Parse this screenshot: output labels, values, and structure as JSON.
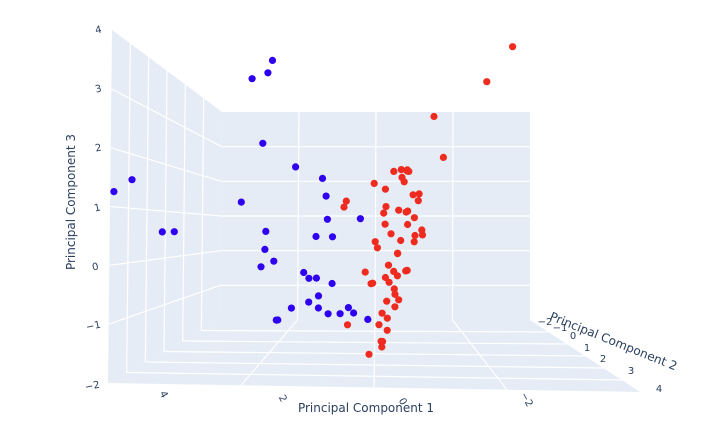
{
  "chart_data": {
    "type": "scatter",
    "title": "",
    "axes": {
      "x": {
        "label": "Principal Component 1",
        "ticks": [
          "4",
          "2",
          "0",
          "−2"
        ]
      },
      "y": {
        "label": "Principal Component 2",
        "ticks": [
          "−2",
          "−1",
          "0",
          "1",
          "2",
          "3",
          "4"
        ]
      },
      "z": {
        "label": "Principal Component 3",
        "ticks": [
          "4",
          "3",
          "2",
          "1",
          "0",
          "−1",
          "−2"
        ]
      }
    },
    "colors": {
      "pane": "#e5ecf6",
      "grid": "#ffffff",
      "series_a": "#2e00ef",
      "series_b": "#ef2a1e"
    },
    "series": [
      {
        "color": "#2e00ef",
        "points": [
          [
            4.1,
            1.1,
            1.3
          ],
          [
            3.9,
            1.0,
            1.5
          ],
          [
            2.5,
            0.5,
            3.2
          ],
          [
            2.4,
            0.3,
            3.3
          ],
          [
            1.9,
            0.9,
            3.5
          ],
          [
            2.1,
            0.6,
            2.1
          ],
          [
            1.8,
            0.2,
            1.7
          ],
          [
            2.1,
            0.9,
            1.1
          ],
          [
            2.9,
            1.5,
            0.6
          ],
          [
            2.7,
            1.5,
            0.6
          ],
          [
            1.4,
            0.1,
            1.5
          ],
          [
            1.3,
            0.1,
            1.2
          ],
          [
            1.7,
            0.8,
            0.6
          ],
          [
            1.0,
            0.4,
            0.8
          ],
          [
            0.8,
            0.5,
            0.5
          ],
          [
            0.7,
            1.0,
            0.5
          ],
          [
            0.3,
            0.6,
            0.8
          ],
          [
            1.9,
            0.5,
            0.3
          ],
          [
            1.8,
            0.4,
            0.1
          ],
          [
            1.7,
            0.8,
            0.0
          ],
          [
            1.2,
            0.5,
            -0.1
          ],
          [
            1.1,
            0.5,
            -0.2
          ],
          [
            0.9,
            0.6,
            -0.2
          ],
          [
            0.4,
            0.9,
            -0.3
          ],
          [
            0.9,
            0.5,
            -0.5
          ],
          [
            1.2,
            0.3,
            -0.6
          ],
          [
            1.4,
            0.4,
            -0.7
          ],
          [
            1.1,
            0.2,
            -0.7
          ],
          [
            1.0,
            0.1,
            -0.8
          ],
          [
            0.8,
            0.1,
            -0.8
          ],
          [
            1.6,
            0.4,
            -0.9
          ],
          [
            1.7,
            0.3,
            -0.9
          ],
          [
            0.6,
            0.2,
            -0.7
          ],
          [
            0.4,
            0.0,
            -0.9
          ],
          [
            0.2,
            0.6,
            -0.8
          ]
        ]
      },
      {
        "color": "#ef2a1e",
        "points": [
          [
            -1.4,
            0.0,
            3.7
          ],
          [
            -1.5,
            0.6,
            3.1
          ],
          [
            -1.6,
            1.8,
            2.5
          ],
          [
            -2.0,
            2.0,
            1.8
          ],
          [
            -1.4,
            2.1,
            1.6
          ],
          [
            -1.1,
            1.6,
            1.4
          ],
          [
            -1.2,
            1.7,
            1.6
          ],
          [
            -0.1,
            0.2,
            1.6
          ],
          [
            0.0,
            0.4,
            1.6
          ],
          [
            -0.3,
            0.5,
            1.6
          ],
          [
            0.0,
            0.2,
            1.5
          ],
          [
            0.1,
            0.4,
            1.3
          ],
          [
            -0.3,
            0.3,
            1.2
          ],
          [
            -0.4,
            0.3,
            1.1
          ],
          [
            0.5,
            0.7,
            1.1
          ],
          [
            -0.1,
            0.6,
            1.0
          ],
          [
            -1.3,
            1.7,
            0.9
          ],
          [
            -0.6,
            0.8,
            0.9
          ],
          [
            -0.9,
            1.0,
            0.8
          ],
          [
            -1.9,
            2.7,
            0.9
          ],
          [
            -0.2,
            0.7,
            0.7
          ],
          [
            0.3,
            0.1,
            0.9
          ],
          [
            -0.6,
            0.4,
            0.6
          ],
          [
            -0.8,
            0.8,
            0.5
          ],
          [
            -1.3,
            1.3,
            0.5
          ],
          [
            -1.9,
            2.8,
            0.5
          ],
          [
            -0.5,
            0.4,
            0.4
          ],
          [
            -1.4,
            1.9,
            0.4
          ],
          [
            -0.2,
            0.8,
            0.3
          ],
          [
            -0.4,
            0.6,
            0.2
          ],
          [
            -0.5,
            0.9,
            0.0
          ],
          [
            -0.8,
            0.9,
            -0.1
          ],
          [
            -1.2,
            1.4,
            -0.1
          ],
          [
            -0.3,
            0.5,
            -0.1
          ],
          [
            -0.1,
            0.4,
            -0.2
          ],
          [
            -1.5,
            2.0,
            -0.2
          ],
          [
            -1.0,
            1.5,
            -0.3
          ],
          [
            0.2,
            0.3,
            -0.3
          ],
          [
            -0.5,
            0.7,
            -0.4
          ],
          [
            -0.1,
            0.3,
            -0.6
          ],
          [
            -0.4,
            0.5,
            -0.7
          ],
          [
            -1.2,
            1.5,
            -0.6
          ],
          [
            0.1,
            0.1,
            -0.8
          ],
          [
            0.2,
            0.7,
            -1.0
          ],
          [
            -0.1,
            0.4,
            -1.0
          ],
          [
            -0.4,
            0.6,
            -1.1
          ],
          [
            -0.8,
            1.2,
            -1.3
          ],
          [
            -1.0,
            1.5,
            -1.3
          ],
          [
            -1.1,
            1.6,
            -1.4
          ],
          [
            0.0,
            0.4,
            -1.5
          ],
          [
            -0.6,
            0.9,
            -0.9
          ],
          [
            -0.9,
            1.2,
            -0.5
          ],
          [
            -0.7,
            1.0,
            0.2
          ],
          [
            -0.2,
            0.2,
            0.7
          ],
          [
            -1.0,
            1.1,
            1.2
          ],
          [
            0.4,
            0.2,
            -0.1
          ],
          [
            -0.3,
            1.0,
            0.4
          ],
          [
            0.6,
            0.6,
            1.0
          ],
          [
            0.3,
            0.4,
            1.4
          ],
          [
            -0.2,
            0.8,
            -0.3
          ]
        ]
      }
    ]
  }
}
